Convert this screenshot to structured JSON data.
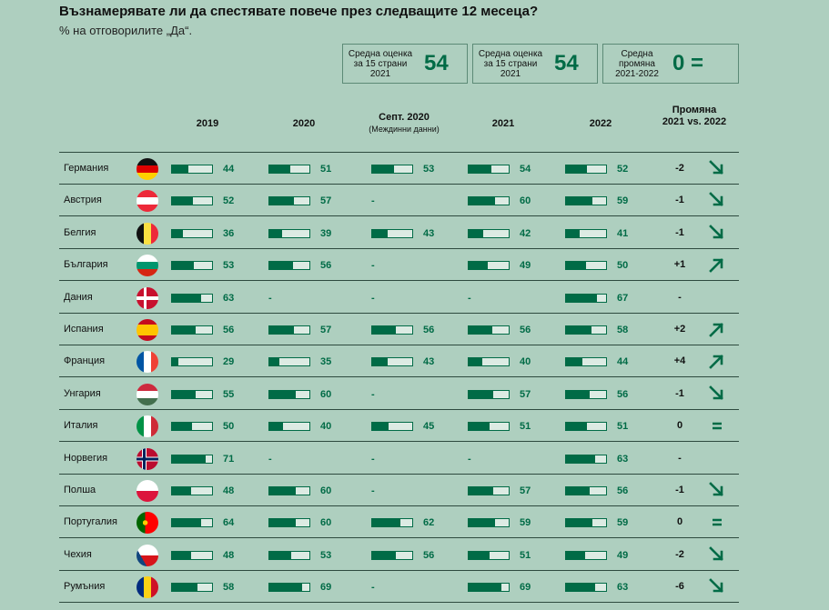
{
  "header": {
    "title": "Възнамерявате ли да спестявате повече през следващите 12 месеца?",
    "subtitle": "% на отговорилите „Да“."
  },
  "summary": [
    {
      "label": "Средна оценка за 15 страни 2021",
      "value": "54"
    },
    {
      "label": "Средна оценка за 15 страни 2021",
      "value": "54"
    },
    {
      "label": "Средна промяна 2021-2022",
      "value": "0 ="
    }
  ],
  "columns": {
    "y2019": "2019",
    "y2020": "2020",
    "sept2020": "Септ. 2020",
    "sept2020_note": "(Междинни данни)",
    "y2021": "2021",
    "y2022": "2022",
    "change": "Промяна 2021 vs. 2022"
  },
  "colors": {
    "background": "#aecfbf",
    "accent": "#006b46",
    "bar_empty": "#dcebe3"
  },
  "chart_data": {
    "type": "table",
    "title": "Възнамерявате ли да спестявате повече през следващите 12 месеца?",
    "unit": "%",
    "bar_scale_max": 100,
    "series_names": [
      "2019",
      "2020",
      "Септ. 2020",
      "2021",
      "2022"
    ],
    "rows": [
      {
        "country": "Германия",
        "flag": "de",
        "values": [
          44,
          51,
          53,
          54,
          52
        ],
        "change": "-2",
        "trend": "down"
      },
      {
        "country": "Австрия",
        "flag": "at",
        "values": [
          52,
          57,
          null,
          60,
          59
        ],
        "change": "-1",
        "trend": "down"
      },
      {
        "country": "Белгия",
        "flag": "be",
        "values": [
          36,
          39,
          43,
          42,
          41
        ],
        "change": "-1",
        "trend": "down"
      },
      {
        "country": "България",
        "flag": "bg",
        "values": [
          53,
          56,
          null,
          49,
          50
        ],
        "change": "+1",
        "trend": "up"
      },
      {
        "country": "Дания",
        "flag": "dk",
        "values": [
          63,
          null,
          null,
          null,
          67
        ],
        "change": "-",
        "trend": "none"
      },
      {
        "country": "Испания",
        "flag": "es",
        "values": [
          56,
          57,
          56,
          56,
          58
        ],
        "change": "+2",
        "trend": "up"
      },
      {
        "country": "Франция",
        "flag": "fr",
        "values": [
          29,
          35,
          43,
          40,
          44
        ],
        "change": "+4",
        "trend": "up"
      },
      {
        "country": "Унгария",
        "flag": "hu",
        "values": [
          55,
          60,
          null,
          57,
          56
        ],
        "change": "-1",
        "trend": "down"
      },
      {
        "country": "Италия",
        "flag": "it",
        "values": [
          50,
          40,
          45,
          51,
          51
        ],
        "change": "0",
        "trend": "equal"
      },
      {
        "country": "Норвегия",
        "flag": "no",
        "values": [
          71,
          null,
          null,
          null,
          63
        ],
        "change": "-",
        "trend": "none"
      },
      {
        "country": "Полша",
        "flag": "pl",
        "values": [
          48,
          60,
          null,
          57,
          56
        ],
        "change": "-1",
        "trend": "down"
      },
      {
        "country": "Португалия",
        "flag": "pt",
        "values": [
          64,
          60,
          62,
          59,
          59
        ],
        "change": "0",
        "trend": "equal"
      },
      {
        "country": "Чехия",
        "flag": "cz",
        "values": [
          48,
          53,
          56,
          51,
          49
        ],
        "change": "-2",
        "trend": "down"
      },
      {
        "country": "Румъния",
        "flag": "ro",
        "values": [
          58,
          69,
          null,
          69,
          63
        ],
        "change": "-6",
        "trend": "down"
      }
    ]
  }
}
